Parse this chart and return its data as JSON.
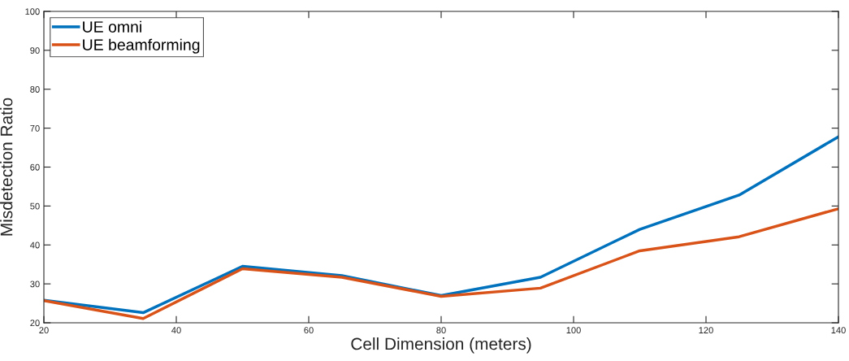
{
  "chart_data": {
    "type": "line",
    "xlabel": "Cell Dimension (meters)",
    "ylabel": "Misdetection Ratio",
    "x": [
      20,
      35,
      50,
      65,
      80,
      95,
      110,
      125,
      140
    ],
    "series": [
      {
        "name": "UE omni",
        "color": "#0072bd",
        "values": [
          25.8,
          22.6,
          34.5,
          32.1,
          27.0,
          31.7,
          44.0,
          52.8,
          67.8
        ]
      },
      {
        "name": "UE beamforming",
        "color": "#d95319",
        "values": [
          25.7,
          21.1,
          33.9,
          31.7,
          26.8,
          28.9,
          38.5,
          42.1,
          49.3
        ]
      }
    ],
    "xlim": [
      20,
      140
    ],
    "xticks": [
      20,
      40,
      60,
      80,
      100,
      120,
      140
    ],
    "ylim": [
      20,
      100
    ],
    "yticks": [
      20,
      30,
      40,
      50,
      60,
      70,
      80,
      90,
      100
    ],
    "grid": false,
    "legend": "top left",
    "marker": "none",
    "line_style": "solid"
  }
}
